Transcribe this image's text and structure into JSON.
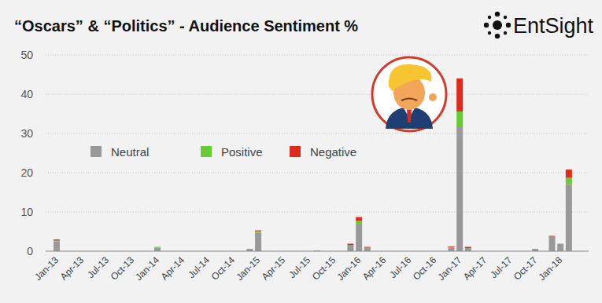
{
  "chart_data": {
    "type": "bar",
    "title": "“Oscars” & “Politics” - Audience Sentiment %",
    "source": "EntSight",
    "stacked": true,
    "grid": true,
    "legend": "left",
    "categories": [
      "Jan-13",
      null,
      null,
      "Apr-13",
      null,
      null,
      "Jul-13",
      null,
      null,
      "Oct-13",
      null,
      null,
      "Jan-14",
      null,
      null,
      "Apr-14",
      null,
      null,
      "Jul-14",
      null,
      null,
      "Oct-14",
      null,
      null,
      "Jan-15",
      null,
      null,
      "Apr-15",
      null,
      null,
      "Jul-15",
      null,
      null,
      "Oct-15",
      null,
      null,
      "Jan-16",
      null,
      null,
      "Apr-16",
      null,
      null,
      "Jul-16",
      null,
      null,
      "Oct-16",
      null,
      null,
      "Jan-17",
      null,
      null,
      "Apr-17",
      null,
      null,
      "Jul-17",
      null,
      null,
      "Oct-17",
      null,
      null,
      "Jan-18",
      null
    ],
    "series": [
      {
        "name": "Neutral",
        "color": "#999999",
        "values": [
          2.5,
          0,
          0,
          0,
          0,
          0,
          0,
          0,
          0,
          0,
          0,
          0,
          0.9,
          0,
          0,
          0,
          0,
          0,
          0,
          0,
          0,
          0,
          0,
          0.6,
          4.7,
          0,
          0,
          0,
          0,
          0,
          0,
          0.2,
          0,
          0,
          0,
          1.6,
          6.8,
          0.9,
          0,
          0,
          0,
          0,
          0,
          0,
          0,
          0,
          0,
          0.9,
          31.8,
          0.8,
          0,
          0,
          0,
          0,
          0,
          0,
          0,
          0.6,
          0,
          3.7,
          1.9,
          17.1
        ]
      },
      {
        "name": "Positive",
        "color": "#66cc33",
        "values": [
          0.2,
          0,
          0,
          0,
          0,
          0,
          0,
          0,
          0,
          0,
          0,
          0,
          0.2,
          0,
          0,
          0,
          0,
          0,
          0,
          0,
          0,
          0,
          0,
          0,
          0.4,
          0,
          0,
          0,
          0,
          0,
          0,
          0,
          0,
          0,
          0,
          0,
          1.0,
          0,
          0,
          0,
          0,
          0,
          0,
          0,
          0,
          0,
          0,
          0.1,
          3.8,
          0,
          0,
          0,
          0,
          0,
          0,
          0,
          0,
          0,
          0,
          0,
          0,
          1.6
        ]
      },
      {
        "name": "Negative",
        "color": "#e02a1b",
        "values": [
          0.3,
          0,
          0,
          0,
          0,
          0,
          0,
          0,
          0,
          0,
          0,
          0,
          0,
          0,
          0,
          0,
          0,
          0,
          0,
          0,
          0,
          0,
          0,
          0,
          0.2,
          0,
          0,
          0,
          0,
          0,
          0,
          0,
          0,
          0,
          0,
          0.3,
          0.9,
          0.2,
          0,
          0,
          0,
          0,
          0,
          0,
          0,
          0,
          0,
          0.2,
          8.4,
          0.3,
          0,
          0,
          0,
          0,
          0,
          0,
          0,
          0,
          0,
          0.2,
          0,
          2.1
        ]
      }
    ],
    "ylim": [
      0,
      50
    ],
    "yticks": [
      0,
      10,
      20,
      30,
      40,
      50
    ]
  }
}
